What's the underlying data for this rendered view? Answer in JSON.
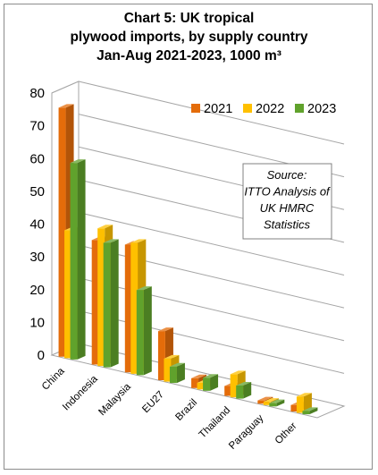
{
  "chart_data": {
    "type": "bar",
    "title": "Chart 5: UK tropical\nplywood imports, by supply country\nJan-Aug 2021-2023, 1000 m³",
    "categories": [
      "China",
      "Indonesia",
      "Malaysia",
      "EU27",
      "Brazil",
      "Thailand",
      "Paraguay",
      "Other"
    ],
    "series": [
      {
        "name": "2021",
        "values": [
          76,
          38,
          39,
          15,
          3,
          3,
          1,
          2
        ],
        "color": "#e46c0a"
      },
      {
        "name": "2022",
        "values": [
          39,
          42,
          40,
          7,
          2,
          7,
          1,
          5
        ],
        "color": "#ffc000"
      },
      {
        "name": "2023",
        "values": [
          60,
          38,
          26,
          5,
          4,
          4,
          1,
          1
        ],
        "color": "#60a22c"
      }
    ],
    "ylim": [
      0,
      80
    ],
    "yticks": [
      "0",
      "10",
      "20",
      "30",
      "40",
      "50",
      "60",
      "70",
      "80"
    ],
    "legend_position": "top-right",
    "grid": true,
    "annotation": "Source:\nITTO Analysis of\nUK HMRC\nStatistics"
  }
}
